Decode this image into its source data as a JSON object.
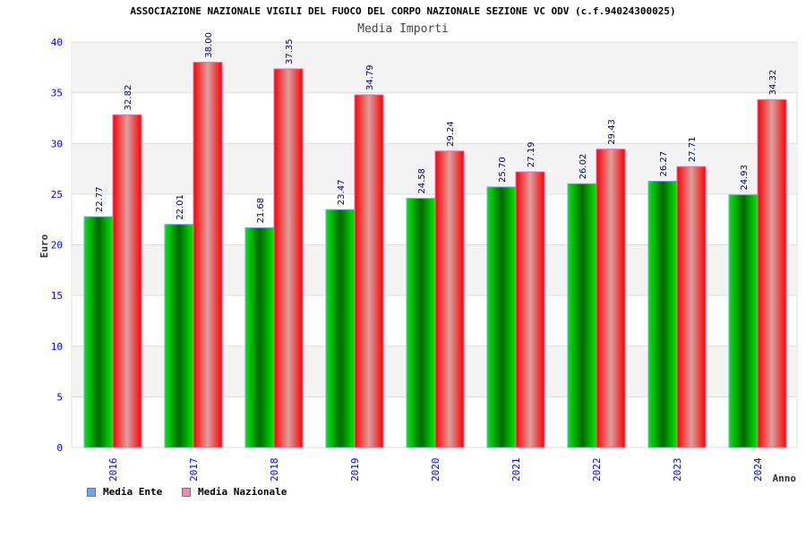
{
  "chart_data": {
    "type": "bar",
    "title": "ASSOCIAZIONE NAZIONALE VIGILI DEL FUOCO DEL CORPO NAZIONALE SEZIONE VC ODV (c.f.94024300025)",
    "subtitle": "Media Importi",
    "xlabel": "Anno",
    "ylabel": "Euro",
    "ylim": [
      0,
      40
    ],
    "yticks": [
      0,
      5,
      10,
      15,
      20,
      25,
      30,
      35,
      40
    ],
    "categories": [
      "2016",
      "2017",
      "2018",
      "2019",
      "2020",
      "2021",
      "2022",
      "2023",
      "2024"
    ],
    "series": [
      {
        "name": "Media Ente",
        "values": [
          22.77,
          22.01,
          21.68,
          23.47,
          24.58,
          25.7,
          26.02,
          26.27,
          24.93
        ],
        "legend_color": "#66aaee",
        "color": "#00cc00"
      },
      {
        "name": "Media Nazionale",
        "values": [
          32.82,
          38.0,
          37.35,
          34.79,
          29.24,
          27.19,
          29.43,
          27.71,
          34.32
        ],
        "legend_color": "#ee88bb",
        "color": "#ff0000"
      }
    ],
    "legend": "bottom-left",
    "grid": true
  }
}
